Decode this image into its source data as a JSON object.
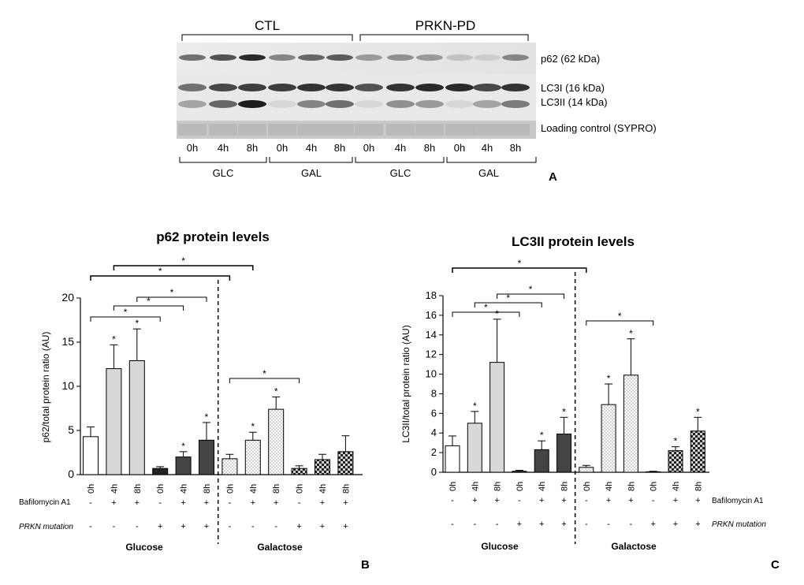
{
  "panel_a": {
    "letter": "A",
    "groups": [
      "CTL",
      "PRKN-PD"
    ],
    "band_labels": [
      "p62 (62 kDa)",
      "LC3I (16 kDa)",
      "LC3II (14 kDa)",
      "Loading control (SYPRO)"
    ],
    "lane_labels": [
      "0h",
      "4h",
      "8h",
      "0h",
      "4h",
      "8h",
      "0h",
      "4h",
      "8h",
      "0h",
      "4h",
      "8h"
    ],
    "condition_labels": [
      "GLC",
      "GAL",
      "GLC",
      "GAL"
    ]
  },
  "panel_b": {
    "letter": "B",
    "row_labels": [
      "Bafilomycin A1",
      "PRKN mutation"
    ],
    "bafilomycin": [
      "-",
      "+",
      "+",
      "-",
      "+",
      "+",
      "-",
      "+",
      "+",
      "-",
      "+",
      "+"
    ],
    "prkn": [
      "-",
      "-",
      "-",
      "+",
      "+",
      "+",
      "-",
      "-",
      "-",
      "+",
      "+",
      "+"
    ],
    "medium_labels": [
      "Glucose",
      "Galactose"
    ]
  },
  "panel_c": {
    "letter": "C",
    "row_labels": [
      "Bafilomycin A1",
      "PRKN mutation"
    ],
    "bafilomycin": [
      "-",
      "+",
      "+",
      "-",
      "+",
      "+",
      "-",
      "+",
      "+",
      "-",
      "+",
      "+"
    ],
    "prkn": [
      "-",
      "-",
      "-",
      "+",
      "+",
      "+",
      "-",
      "-",
      "-",
      "+",
      "+",
      "+"
    ],
    "medium_labels": [
      "Glucose",
      "Galactose"
    ]
  },
  "chart_data": [
    {
      "type": "bar",
      "title": "p62 protein levels",
      "xlabel": "",
      "ylabel": "p62/total protein ratio (AU)",
      "categories": [
        "0h",
        "4h",
        "8h",
        "0h",
        "4h",
        "8h",
        "0h",
        "4h",
        "8h",
        "0h",
        "4h",
        "8h"
      ],
      "values": [
        4.3,
        12.0,
        12.9,
        0.7,
        2.0,
        3.9,
        1.8,
        3.9,
        7.4,
        0.7,
        1.7,
        2.6
      ],
      "errors": [
        1.1,
        2.7,
        3.6,
        0.2,
        0.6,
        2.0,
        0.5,
        0.9,
        1.4,
        0.3,
        0.6,
        1.8
      ],
      "significance": [
        "",
        "*",
        "*",
        "",
        "*",
        "*",
        "",
        "*",
        "*",
        "",
        "",
        ""
      ],
      "bracket_labels": [
        "*",
        "*",
        "*",
        "*",
        "*",
        "*"
      ],
      "ylim": [
        0,
        20
      ],
      "yticks": [
        "0",
        "5",
        "10",
        "15",
        "20"
      ]
    },
    {
      "type": "bar",
      "title": "LC3II protein levels",
      "xlabel": "",
      "ylabel": "LC3II/total protein ratio (AU)",
      "categories": [
        "0h",
        "4h",
        "8h",
        "0h",
        "4h",
        "8h",
        "0h",
        "4h",
        "8h",
        "0h",
        "4h",
        "8h"
      ],
      "values": [
        2.7,
        5.0,
        11.2,
        0.1,
        2.3,
        3.9,
        0.5,
        6.9,
        9.9,
        0.05,
        2.2,
        4.2
      ],
      "errors": [
        1.0,
        1.2,
        4.4,
        0.1,
        0.9,
        1.7,
        0.2,
        2.1,
        3.7,
        0.05,
        0.4,
        1.4
      ],
      "significance": [
        "",
        "*",
        "*",
        "",
        "*",
        "*",
        "",
        "*",
        "*",
        "",
        "*",
        "*"
      ],
      "bracket_labels": [
        "*",
        "*",
        "*",
        "*",
        "*",
        "*"
      ],
      "ylim": [
        0,
        18
      ],
      "yticks": [
        "0",
        "2",
        "4",
        "6",
        "8",
        "10",
        "12",
        "14",
        "16",
        "18"
      ]
    }
  ]
}
